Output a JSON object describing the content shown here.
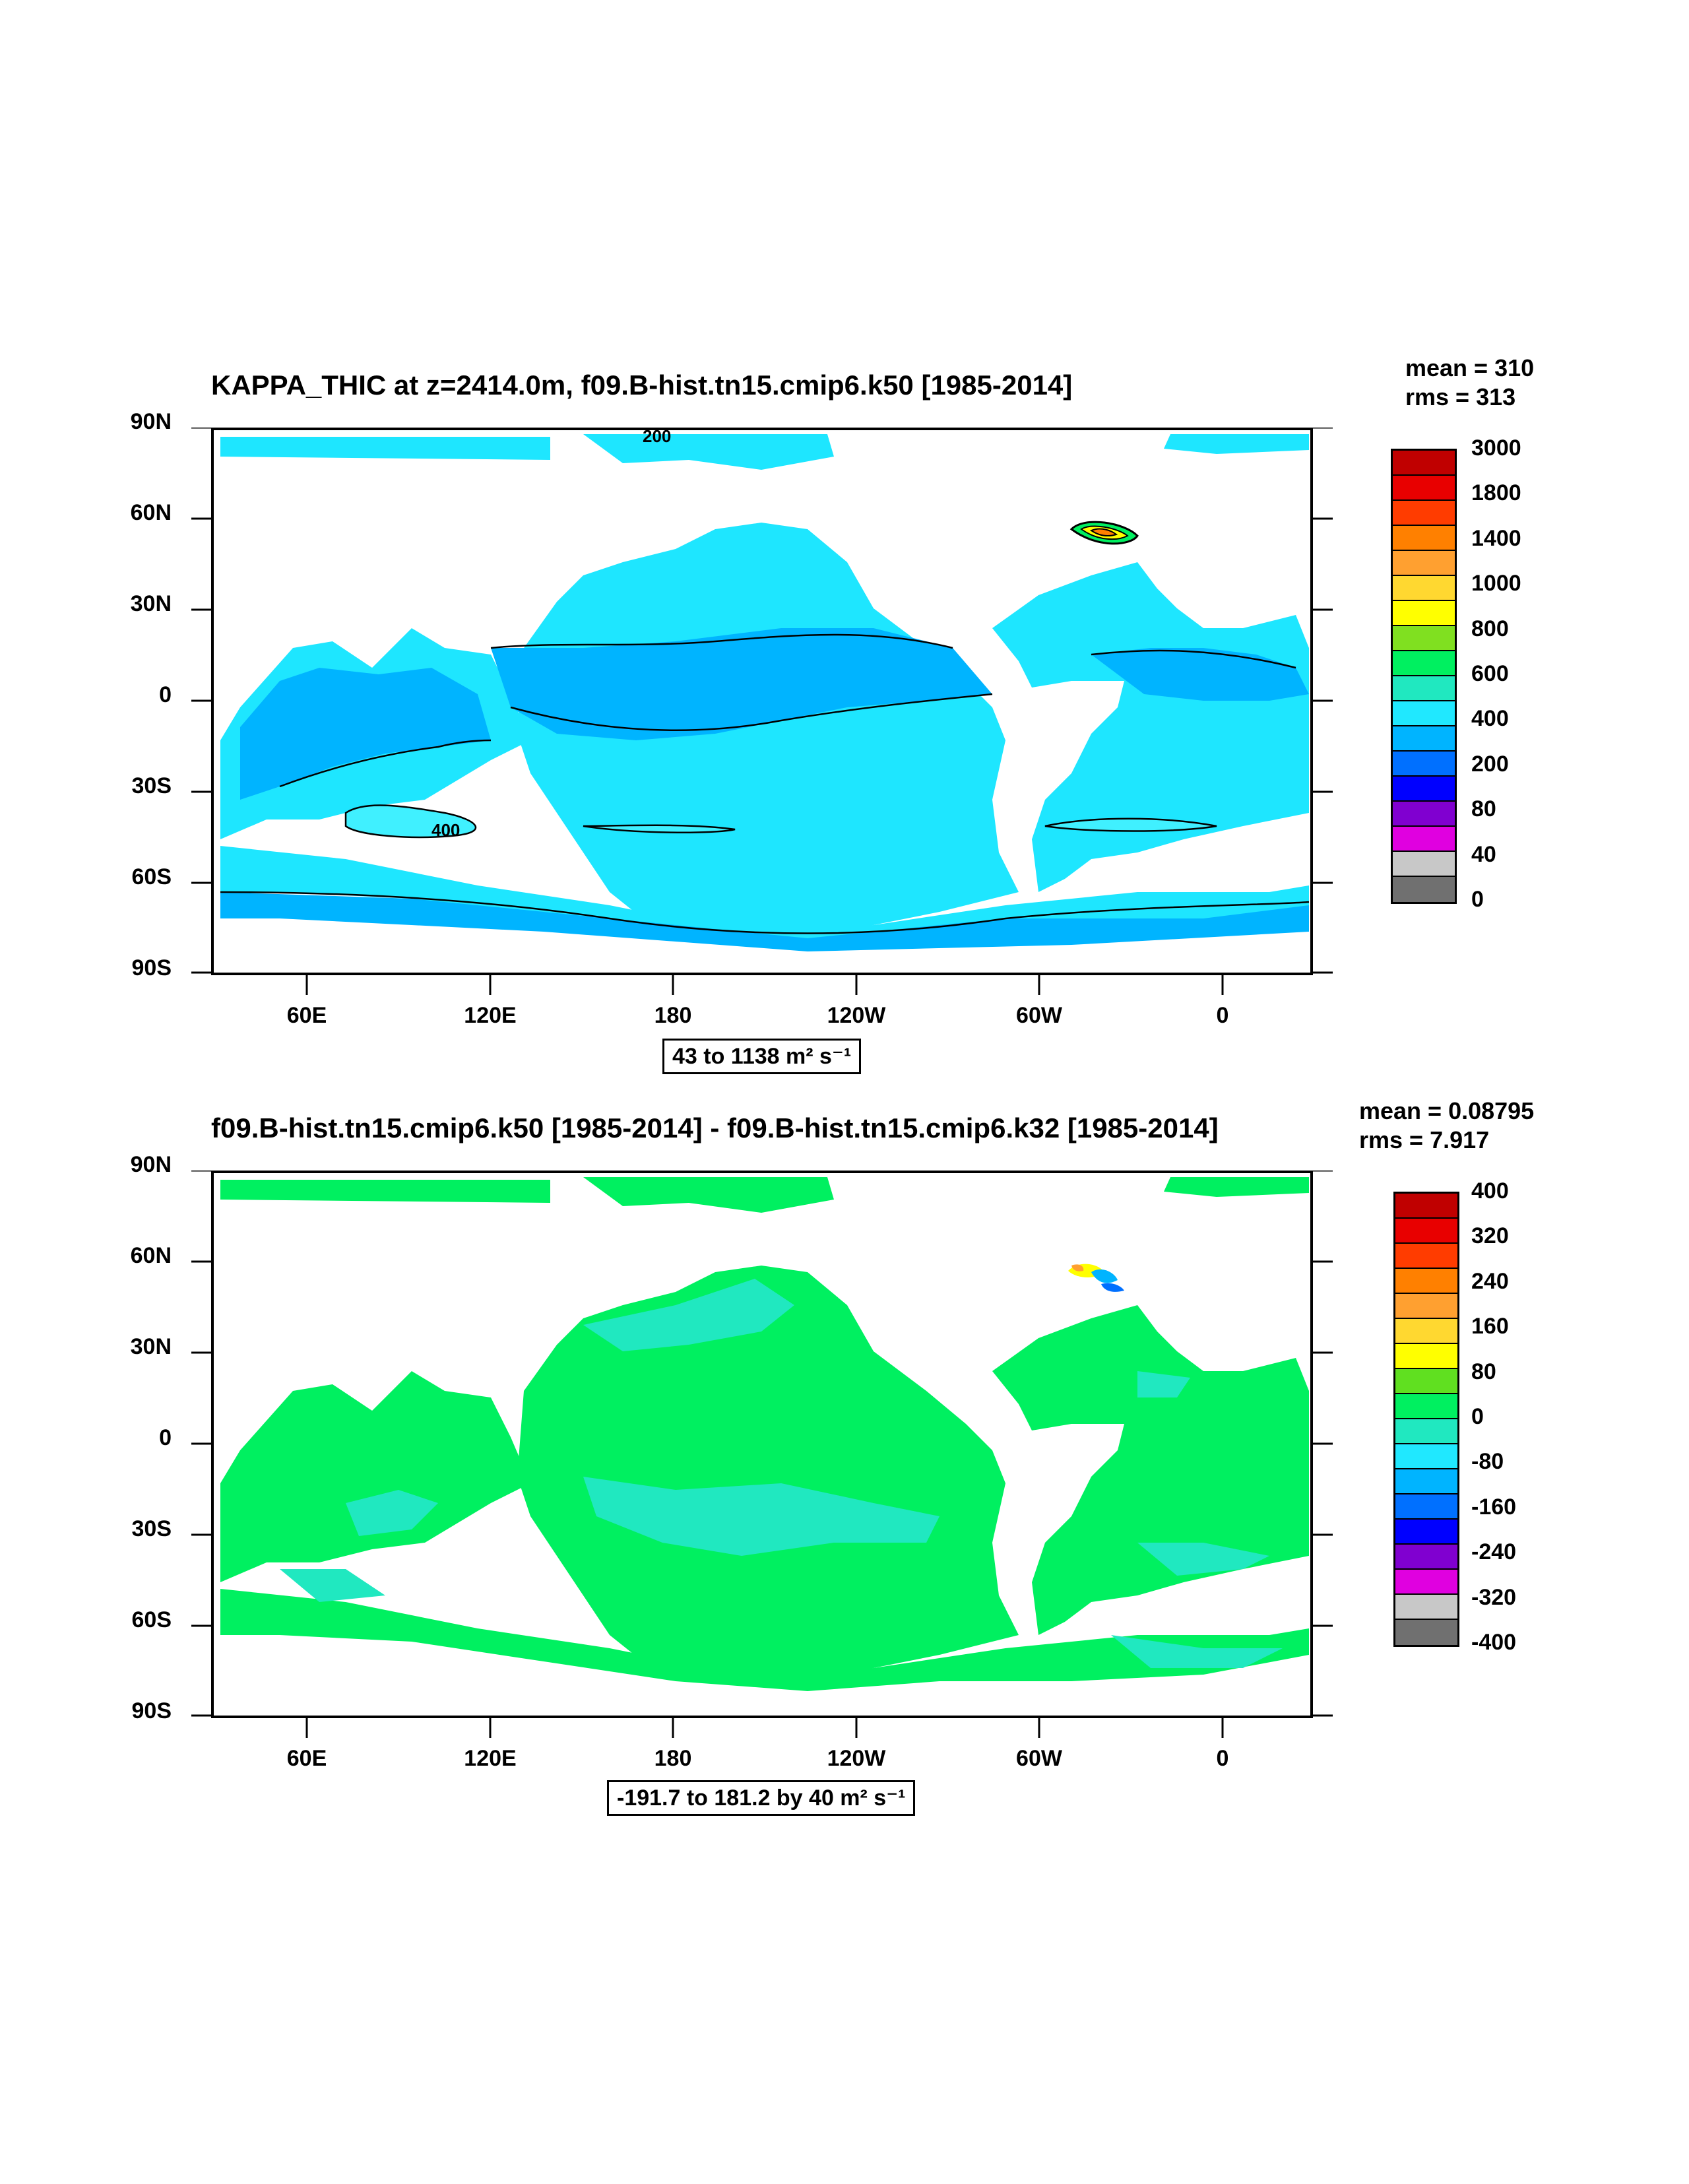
{
  "top": {
    "title": "KAPPA_THIC at z=2414.0m, f09.B-hist.tn15.cmip6.k50 [1985-2014]",
    "mean": "mean = 310",
    "rms": "rms = 313",
    "range": "43 to 1138 m² s⁻¹",
    "contour_labels": [
      "200",
      "400"
    ],
    "colorbar_labels": [
      "3000",
      "1800",
      "1400",
      "1000",
      "800",
      "600",
      "400",
      "200",
      "80",
      "40",
      "0"
    ],
    "colorbar_colors": [
      "#c00000",
      "#e80000",
      "#ff3c00",
      "#ff8000",
      "#ffa030",
      "#ffd830",
      "#ffff00",
      "#80e020",
      "#00f060",
      "#20e8c0",
      "#20e8ff",
      "#00b4ff",
      "#0070ff",
      "#0000ff",
      "#8000d0",
      "#e000e0",
      "#c8c8c8",
      "#707070"
    ]
  },
  "bottom": {
    "title": "f09.B-hist.tn15.cmip6.k50 [1985-2014] - f09.B-hist.tn15.cmip6.k32 [1985-2014]",
    "mean": "mean = 0.08795",
    "rms": "rms = 7.917",
    "range": "-191.7 to 181.2 by 40 m² s⁻¹",
    "colorbar_labels": [
      "400",
      "320",
      "240",
      "160",
      "80",
      "0",
      "-80",
      "-160",
      "-240",
      "-320",
      "-400"
    ],
    "colorbar_colors": [
      "#c00000",
      "#e80000",
      "#ff3c00",
      "#ff8000",
      "#ffa030",
      "#ffd830",
      "#ffff00",
      "#60e020",
      "#00f060",
      "#20e8c0",
      "#20e8ff",
      "#00b4ff",
      "#0070ff",
      "#0000ff",
      "#8000d0",
      "#e000e0",
      "#c8c8c8",
      "#707070"
    ]
  },
  "axes": {
    "y_labels": [
      "90N",
      "60N",
      "30N",
      "0",
      "30S",
      "60S",
      "90S"
    ],
    "x_labels": [
      "60E",
      "120E",
      "180",
      "120W",
      "60W",
      "0"
    ]
  }
}
